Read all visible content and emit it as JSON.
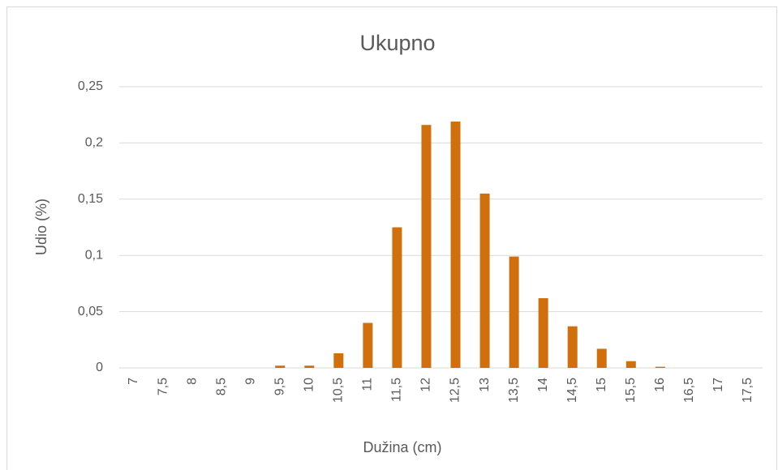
{
  "chart_data": {
    "type": "bar",
    "title": "Ukupno",
    "x_label": "Dužina (cm)",
    "y_label": "Udio (%)",
    "categories": [
      "7",
      "7,5",
      "8",
      "8,5",
      "9",
      "9,5",
      "10",
      "10,5",
      "11",
      "11,5",
      "12",
      "12,5",
      "13",
      "13,5",
      "14",
      "14,5",
      "15",
      "15,5",
      "16",
      "16,5",
      "17",
      "17,5"
    ],
    "values": [
      0,
      0,
      0,
      0,
      0,
      0.002,
      0.002,
      0.013,
      0.04,
      0.125,
      0.216,
      0.219,
      0.155,
      0.099,
      0.062,
      0.037,
      0.017,
      0.006,
      0.001,
      0,
      0,
      0
    ],
    "color": "#d16f0c",
    "ylim": [
      0,
      0.25
    ],
    "yticks": [
      0,
      {
        "value": 0.05,
        "label": "0,05"
      },
      {
        "value": 0.1,
        "label": "0,1"
      },
      {
        "value": 0.15,
        "label": "0,15"
      },
      {
        "value": 0.2,
        "label": "0,2"
      },
      {
        "value": 0.25,
        "label": "0,25"
      }
    ],
    "grid": true
  }
}
